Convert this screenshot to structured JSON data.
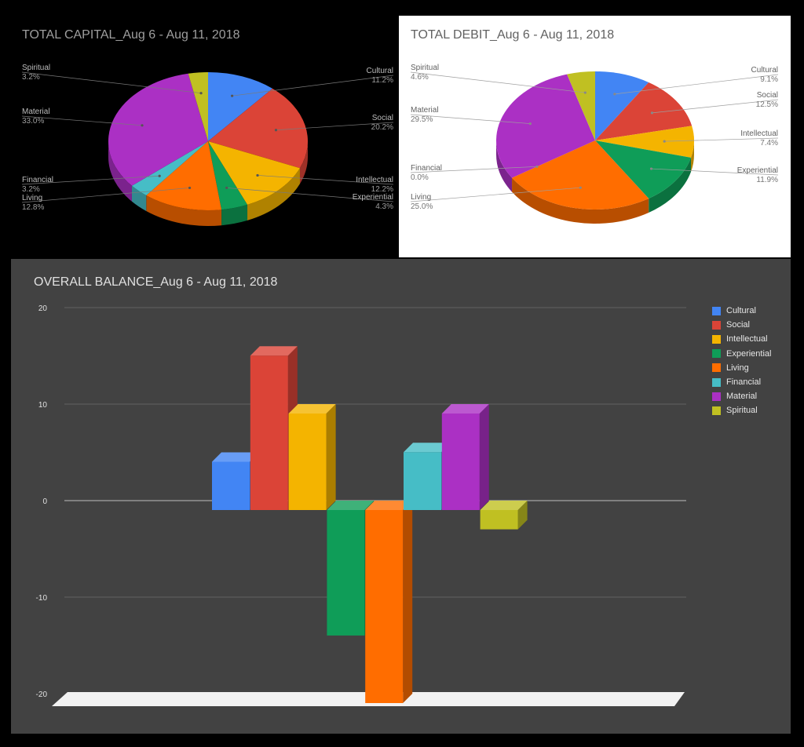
{
  "chart_data": [
    {
      "type": "pie",
      "title": "TOTAL CAPITAL_Aug 6 - Aug 11, 2018",
      "slices": [
        {
          "label": "Cultural",
          "value": 11.2,
          "value_label": "11.2%",
          "color": "#4285f4"
        },
        {
          "label": "Social",
          "value": 20.2,
          "value_label": "20.2%",
          "color": "#db4437"
        },
        {
          "label": "Intellectual",
          "value": 12.2,
          "value_label": "12.2%",
          "color": "#f4b400"
        },
        {
          "label": "Experiential",
          "value": 4.3,
          "value_label": "4.3%",
          "color": "#0f9d58"
        },
        {
          "label": "Living",
          "value": 12.8,
          "value_label": "12.8%",
          "color": "#ff6d00"
        },
        {
          "label": "Financial",
          "value": 3.2,
          "value_label": "3.2%",
          "color": "#46bdc6"
        },
        {
          "label": "Material",
          "value": 33.0,
          "value_label": "33.0%",
          "color": "#ab30c4"
        },
        {
          "label": "Spiritual",
          "value": 3.2,
          "value_label": "3.2%",
          "color": "#c0c022"
        }
      ]
    },
    {
      "type": "pie",
      "title": "TOTAL DEBIT_Aug 6 - Aug 11, 2018",
      "slices": [
        {
          "label": "Cultural",
          "value": 9.1,
          "value_label": "9.1%",
          "color": "#4285f4"
        },
        {
          "label": "Social",
          "value": 12.5,
          "value_label": "12.5%",
          "color": "#db4437"
        },
        {
          "label": "Intellectual",
          "value": 7.4,
          "value_label": "7.4%",
          "color": "#f4b400"
        },
        {
          "label": "Experiential",
          "value": 11.9,
          "value_label": "11.9%",
          "color": "#0f9d58"
        },
        {
          "label": "Living",
          "value": 25.0,
          "value_label": "25.0%",
          "color": "#ff6d00"
        },
        {
          "label": "Financial",
          "value": 0.0,
          "value_label": "0.0%",
          "color": "#46bdc6"
        },
        {
          "label": "Material",
          "value": 29.5,
          "value_label": "29.5%",
          "color": "#ab30c4"
        },
        {
          "label": "Spiritual",
          "value": 4.6,
          "value_label": "4.6%",
          "color": "#c0c022"
        }
      ]
    },
    {
      "type": "bar",
      "title": "OVERALL BALANCE_Aug 6 - Aug 11, 2018",
      "categories": [
        "Cultural",
        "Social",
        "Intellectual",
        "Experiential",
        "Living",
        "Financial",
        "Material",
        "Spiritual"
      ],
      "values": [
        5,
        16,
        10,
        -13,
        -20,
        6,
        10,
        -2
      ],
      "colors": [
        "#4285f4",
        "#db4437",
        "#f4b400",
        "#0f9d58",
        "#ff6d00",
        "#46bdc6",
        "#ab30c4",
        "#c0c022"
      ],
      "ylim": [
        -20,
        20
      ],
      "yticks": [
        20,
        10,
        0,
        -10,
        -20
      ],
      "legend_position": "right",
      "grid": true
    }
  ]
}
